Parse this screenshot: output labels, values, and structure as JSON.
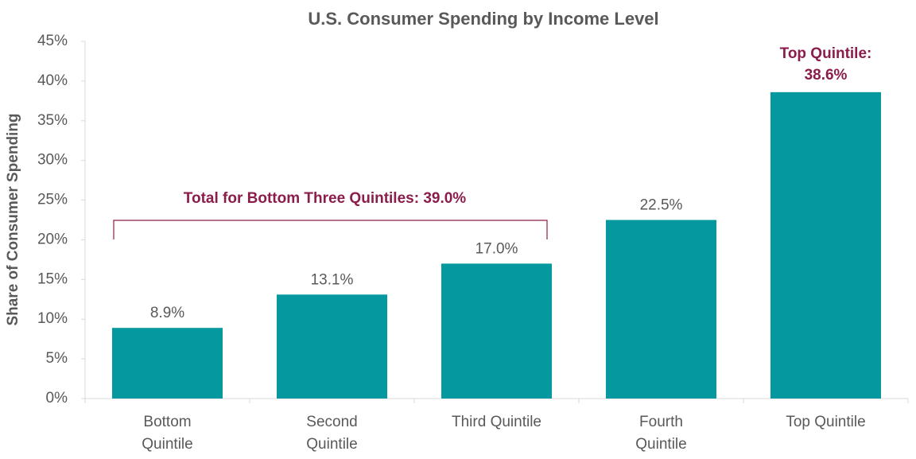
{
  "chart_data": {
    "type": "bar",
    "title": "U.S. Consumer Spending by Income Level",
    "y_label": "Share of Consumer Spending",
    "categories": [
      "Bottom Quintile",
      "Second Quintile",
      "Third Quintile",
      "Fourth Quintile",
      "Top Quintile"
    ],
    "values": [
      8.9,
      13.1,
      17.0,
      22.5,
      38.6
    ],
    "value_labels": [
      "8.9%",
      "13.1%",
      "17.0%",
      "22.5%",
      "Top Quintile: 38.6%"
    ],
    "value_label_colors": [
      "#595959",
      "#595959",
      "#595959",
      "#595959",
      "#8b1d4c"
    ],
    "color": "#05999f",
    "ylim": [
      0,
      45
    ],
    "yticks": [
      {
        "value": 0,
        "label": "0%"
      },
      {
        "value": 5,
        "label": "5%"
      },
      {
        "value": 10,
        "label": "10%"
      },
      {
        "value": 15,
        "label": "15%"
      },
      {
        "value": 20,
        "label": "20%"
      },
      {
        "value": 25,
        "label": "25%"
      },
      {
        "value": 30,
        "label": "30%"
      },
      {
        "value": 35,
        "label": "35%"
      },
      {
        "value": 40,
        "label": "40%"
      },
      {
        "value": 45,
        "label": "45%"
      }
    ],
    "grid": false,
    "annotation": "Total for Bottom Three Quintiles: 39.0%",
    "annotation_color": "#8b1d4c"
  }
}
